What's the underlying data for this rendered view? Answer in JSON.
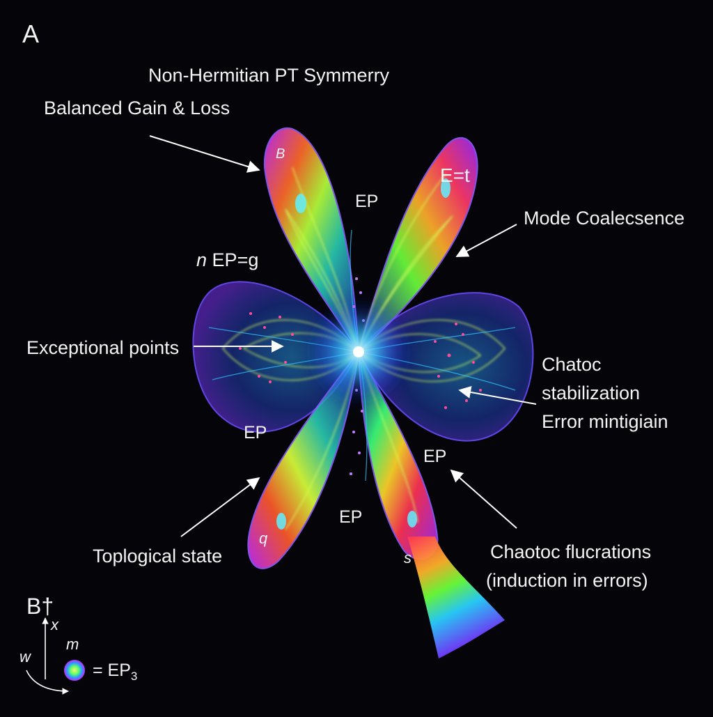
{
  "panel_label": "A",
  "title": "Non-Hermitian PT Symmerry",
  "annotations": {
    "gain_loss": "Balanced Gain & Loss",
    "mode_coalescence": "Mode Coalecsence",
    "n_ep": "EP=g",
    "n_ep_prefix": "n",
    "exceptional_points": "Exceptional points",
    "chatoc_line1": "Chatoc",
    "chatoc_line2": "stabilization",
    "chatoc_line3": "Error mintigiain",
    "topological": "Toplogical state",
    "fluct_line1": "Chaotoc flucrations",
    "fluct_line2": "(induction in errors)"
  },
  "lobe_labels": {
    "top_left": "B",
    "top_right": "E=t",
    "bottom_left": "q",
    "bottom_right": "s"
  },
  "ep_labels": {
    "top": "EP",
    "left": "EP",
    "bottom_right": "EP",
    "bottom": "EP"
  },
  "legend": {
    "axis_b": "B†",
    "axis_x": "x",
    "axis_w": "w",
    "marker_m": "m",
    "equation": "= EP",
    "subscript": "3"
  },
  "colors": {
    "background": "#050509",
    "core_glow": "#39d4ff",
    "lobe_blue": "#2f4bd6",
    "rainbow_start": "#8a2be2",
    "rainbow_end": "#ff3355"
  }
}
